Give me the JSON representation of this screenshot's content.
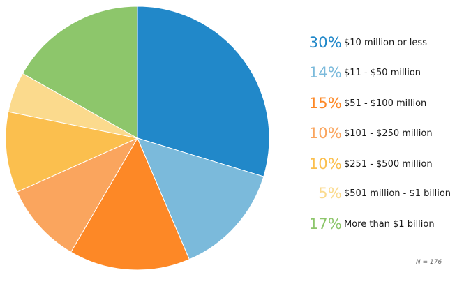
{
  "chart_data": {
    "type": "pie",
    "title": "",
    "categories": [
      "$10 million or less",
      "$11 - $50 million",
      "$51 - $100 million",
      "$101 - $250 million",
      "$251 - $500 million",
      "$501 million - $1 billion",
      "More than $1 billion"
    ],
    "values": [
      30,
      14,
      15,
      10,
      10,
      5,
      17
    ],
    "percent_labels": [
      "30%",
      "14%",
      "15%",
      "10%",
      "10%",
      "5%",
      "17%"
    ],
    "colors": [
      "#2188c9",
      "#7bbadb",
      "#fd8826",
      "#faa55e",
      "#fbbf4e",
      "#fbda8d",
      "#8dc66b"
    ],
    "legend_position": "right",
    "note": "N = 176"
  }
}
